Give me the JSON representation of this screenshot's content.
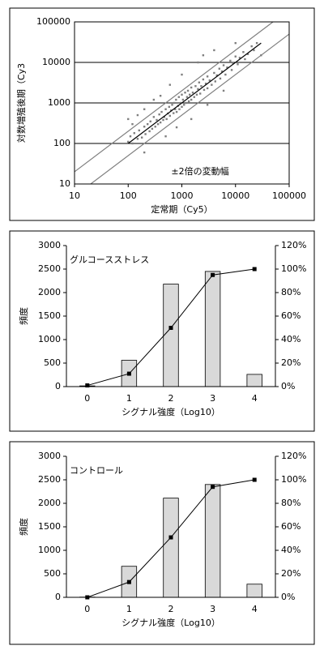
{
  "chart_data": [
    {
      "type": "scatter",
      "xlabel": "定常期（Cy5）",
      "ylabel": "対数増殖後期（Cy3",
      "annotation": "±2倍の変動幅",
      "xlog": true,
      "ylog": true,
      "xlim": [
        10,
        100000
      ],
      "ylim": [
        10,
        100000
      ],
      "xticks": [
        10,
        100,
        1000,
        10000,
        100000
      ],
      "yticks": [
        10,
        100,
        1000,
        10000,
        100000
      ],
      "grid": true,
      "color": "#7f7f7f",
      "x": [
        100,
        120,
        110,
        130,
        150,
        160,
        180,
        200,
        210,
        230,
        250,
        260,
        280,
        300,
        320,
        340,
        360,
        380,
        400,
        420,
        450,
        470,
        500,
        520,
        550,
        580,
        600,
        630,
        660,
        700,
        720,
        750,
        780,
        800,
        850,
        880,
        900,
        950,
        1000,
        1000,
        1050,
        1100,
        1150,
        1200,
        1250,
        1300,
        1350,
        1400,
        1500,
        1500,
        1600,
        1700,
        1800,
        1900,
        2000,
        2100,
        2200,
        2300,
        2500,
        2600,
        2800,
        3000,
        3000,
        3300,
        3600,
        4000,
        4200,
        4500,
        5000,
        5200,
        5600,
        6000,
        6500,
        7000,
        8000,
        8500,
        9000,
        10000,
        11000,
        12000,
        14000,
        15000,
        17000,
        20000,
        22000,
        25000,
        100,
        150,
        200,
        300,
        600,
        1000,
        2000,
        500,
        800,
        1500,
        3000,
        6000,
        200,
        2500,
        4000,
        10000,
        30000,
        120,
        400
      ],
      "y": [
        110,
        100,
        150,
        180,
        130,
        210,
        140,
        260,
        170,
        300,
        200,
        350,
        230,
        450,
        260,
        380,
        300,
        520,
        330,
        600,
        380,
        450,
        700,
        400,
        550,
        800,
        480,
        650,
        900,
        560,
        1000,
        700,
        1200,
        600,
        850,
        1400,
        700,
        1000,
        1600,
        800,
        1200,
        900,
        1800,
        1000,
        1400,
        2000,
        1100,
        1600,
        2400,
        1200,
        1800,
        1400,
        2600,
        1600,
        2200,
        3200,
        1700,
        2600,
        3800,
        2100,
        3000,
        4500,
        2300,
        3600,
        2800,
        5500,
        3400,
        4800,
        7000,
        4000,
        6000,
        8500,
        5000,
        7500,
        11000,
        6500,
        9500,
        14000,
        9000,
        13000,
        18000,
        12000,
        16000,
        25000,
        20000,
        30000,
        400,
        500,
        700,
        1200,
        2800,
        5000,
        10000,
        150,
        250,
        400,
        900,
        2000,
        60,
        15000,
        20000,
        30000,
        15000,
        300,
        1500
      ],
      "lines": [
        {
          "color": "#000000",
          "x": [
            100,
            30000
          ],
          "y": [
            100,
            30000
          ]
        },
        {
          "color": "#7f7f7f",
          "x": [
            10,
            50000
          ],
          "y": [
            20,
            100000
          ]
        },
        {
          "color": "#7f7f7f",
          "x": [
            20,
            100000
          ],
          "y": [
            10,
            50000
          ]
        }
      ]
    },
    {
      "type": "bar",
      "title": "グルコースストレス",
      "xlabel": "シグナル強度（Log10）",
      "ylabel": "頻度",
      "categories": [
        "0",
        "1",
        "2",
        "3",
        "4"
      ],
      "ylim": [
        0,
        3000
      ],
      "yticks": [
        0,
        500,
        1000,
        1500,
        2000,
        2500,
        3000
      ],
      "y2lim": [
        0,
        120
      ],
      "y2ticks": [
        {
          "value": 0,
          "label": "0%"
        },
        {
          "value": 20,
          "label": "20%"
        },
        {
          "value": 40,
          "label": "40%"
        },
        {
          "value": 60,
          "label": "60%"
        },
        {
          "value": 80,
          "label": "80%"
        },
        {
          "value": 100,
          "label": "100%"
        },
        {
          "value": 120,
          "label": "120%"
        }
      ],
      "series": [
        {
          "type": "bar",
          "color": "#d9d9d9",
          "values": [
            15,
            560,
            2180,
            2450,
            260
          ]
        },
        {
          "type": "line",
          "axis": "y2",
          "color": "#000000",
          "values": [
            1,
            11,
            50,
            95,
            100
          ]
        }
      ]
    },
    {
      "type": "bar",
      "title": "コントロール",
      "xlabel": "シグナル強度（Log10）",
      "ylabel": "頻度",
      "categories": [
        "0",
        "1",
        "2",
        "3",
        "4"
      ],
      "ylim": [
        0,
        3000
      ],
      "yticks": [
        0,
        500,
        1000,
        1500,
        2000,
        2500,
        3000
      ],
      "y2lim": [
        0,
        120
      ],
      "y2ticks": [
        {
          "value": 0,
          "label": "0%"
        },
        {
          "value": 20,
          "label": "20%"
        },
        {
          "value": 40,
          "label": "40%"
        },
        {
          "value": 60,
          "label": "60%"
        },
        {
          "value": 80,
          "label": "80%"
        },
        {
          "value": 100,
          "label": "100%"
        },
        {
          "value": 120,
          "label": "120%"
        }
      ],
      "series": [
        {
          "type": "bar",
          "color": "#d9d9d9",
          "values": [
            5,
            660,
            2110,
            2400,
            280
          ]
        },
        {
          "type": "line",
          "axis": "y2",
          "color": "#000000",
          "values": [
            0,
            13,
            51,
            94,
            100
          ]
        }
      ]
    }
  ]
}
